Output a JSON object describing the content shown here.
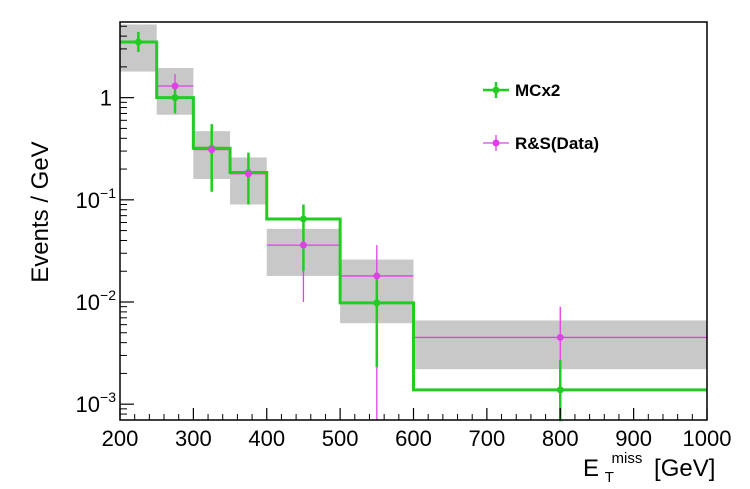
{
  "chart_data": {
    "type": "line",
    "ylabel": "Events / GeV",
    "xlabel": {
      "symbol": "E",
      "sup": "miss",
      "sub": "T",
      "unit": "[GeV]"
    },
    "xlim": [
      200,
      1000
    ],
    "ylim": [
      0.0007,
      5.5
    ],
    "yscale": "log",
    "grid": false,
    "legend_position": "top-right",
    "x_ticks": [
      {
        "value": 200,
        "label": "200"
      },
      {
        "value": 300,
        "label": "300"
      },
      {
        "value": 400,
        "label": "400"
      },
      {
        "value": 500,
        "label": "500"
      },
      {
        "value": 600,
        "label": "600"
      },
      {
        "value": 700,
        "label": "700"
      },
      {
        "value": 800,
        "label": "800"
      },
      {
        "value": 900,
        "label": "900"
      },
      {
        "value": 1000,
        "label": "1000"
      }
    ],
    "y_ticks": [
      {
        "value": 1,
        "base": "1",
        "exp": ""
      },
      {
        "value": 0.1,
        "base": "10",
        "exp": "−1"
      },
      {
        "value": 0.01,
        "base": "10",
        "exp": "−2"
      },
      {
        "value": 0.001,
        "base": "10",
        "exp": "−3"
      }
    ],
    "bins": [
      {
        "low": 200,
        "high": 250
      },
      {
        "low": 250,
        "high": 300
      },
      {
        "low": 300,
        "high": 350
      },
      {
        "low": 350,
        "high": 400
      },
      {
        "low": 400,
        "high": 500
      },
      {
        "low": 500,
        "high": 600
      },
      {
        "low": 600,
        "high": 1000
      }
    ],
    "series": [
      {
        "name": "MCx2",
        "color": "#22cc22",
        "style": "step",
        "x": [
          225,
          275,
          325,
          375,
          450,
          550,
          800
        ],
        "y": [
          3.5,
          1.0,
          0.32,
          0.185,
          0.065,
          0.0098,
          0.00138
        ],
        "y_err_low": [
          2.8,
          0.7,
          0.12,
          0.09,
          0.02,
          0.0023,
          0.00068
        ],
        "y_err_high": [
          4.4,
          1.35,
          0.55,
          0.29,
          0.09,
          0.018,
          0.0027
        ]
      },
      {
        "name": "R&S(Data)",
        "color": "#e040e8",
        "style": "points",
        "x": [
          275,
          325,
          375,
          450,
          550,
          800
        ],
        "y": [
          1.3,
          0.31,
          0.18,
          0.036,
          0.018,
          0.0045
        ],
        "y_err_low": [
          0.9,
          0.17,
          0.1,
          0.01,
          0.0007,
          0.0021
        ],
        "y_err_high": [
          1.7,
          0.45,
          0.26,
          0.05,
          0.036,
          0.009
        ]
      }
    ],
    "uncertainty_band": {
      "color": "#c8c8c8",
      "low": [
        1.8,
        0.68,
        0.16,
        0.09,
        0.018,
        0.0062,
        0.0022
      ],
      "high": [
        5.2,
        1.95,
        0.47,
        0.26,
        0.052,
        0.026,
        0.0066
      ]
    }
  }
}
